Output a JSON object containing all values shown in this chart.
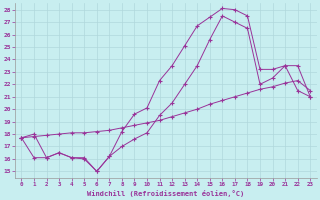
{
  "xlabel": "Windchill (Refroidissement éolien,°C)",
  "bg_color": "#c8eef0",
  "line_color": "#993399",
  "grid_color": "#b0d8dc",
  "xlim": [
    -0.5,
    23.5
  ],
  "ylim": [
    14.5,
    28.5
  ],
  "xticks": [
    0,
    1,
    2,
    3,
    4,
    5,
    6,
    7,
    8,
    9,
    10,
    11,
    12,
    13,
    14,
    15,
    16,
    17,
    18,
    19,
    20,
    21,
    22,
    23
  ],
  "yticks": [
    15,
    16,
    17,
    18,
    19,
    20,
    21,
    22,
    23,
    24,
    25,
    26,
    27,
    28
  ],
  "curve1_x": [
    0,
    1,
    2,
    3,
    4,
    5,
    6,
    7,
    8,
    9,
    10,
    11,
    12,
    13,
    14,
    15,
    16,
    17,
    18,
    19,
    20,
    21,
    22,
    23
  ],
  "curve1_y": [
    17.7,
    18.0,
    16.1,
    16.5,
    16.1,
    16.1,
    15.0,
    16.2,
    18.2,
    19.6,
    20.1,
    22.3,
    23.5,
    25.1,
    26.7,
    27.4,
    28.1,
    28.0,
    27.5,
    23.2,
    23.2,
    23.5,
    23.5,
    21.0
  ],
  "curve2_x": [
    0,
    1,
    2,
    3,
    4,
    5,
    6,
    7,
    8,
    9,
    10,
    11,
    12,
    13,
    14,
    15,
    16,
    17,
    18,
    19,
    20,
    21,
    22,
    23
  ],
  "curve2_y": [
    17.7,
    17.8,
    17.9,
    18.0,
    18.1,
    18.1,
    18.2,
    18.3,
    18.5,
    18.7,
    18.9,
    19.1,
    19.4,
    19.7,
    20.0,
    20.4,
    20.7,
    21.0,
    21.3,
    21.6,
    21.8,
    22.1,
    22.3,
    21.5
  ],
  "curve3_x": [
    0,
    1,
    2,
    3,
    4,
    5,
    6,
    7,
    8,
    9,
    10,
    11,
    12,
    13,
    14,
    15,
    16,
    17,
    18,
    19,
    20,
    21,
    22,
    23
  ],
  "curve3_y": [
    17.7,
    16.1,
    16.1,
    16.5,
    16.1,
    16.0,
    15.0,
    16.2,
    17.0,
    17.6,
    18.1,
    19.5,
    20.5,
    22.0,
    23.5,
    25.6,
    27.5,
    27.0,
    26.5,
    22.0,
    22.5,
    23.5,
    21.5,
    21.0
  ]
}
